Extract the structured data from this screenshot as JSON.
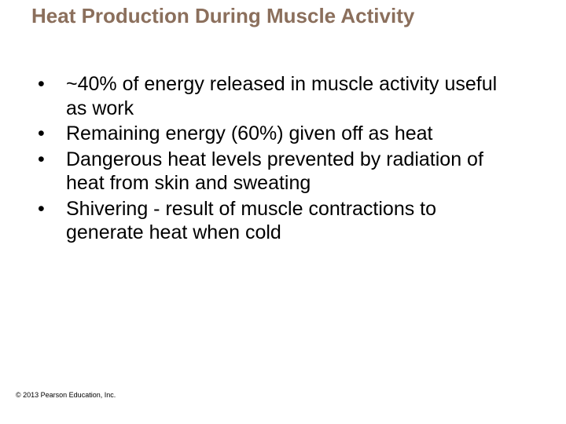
{
  "slide": {
    "title": "Heat Production During Muscle Activity",
    "title_color": "#8b6f5c",
    "title_fontsize": 26,
    "body_fontsize": 25,
    "body_color": "#000000",
    "background_color": "#ffffff",
    "bullets": [
      "~40% of energy released in muscle activity useful as work",
      "Remaining energy (60%) given off as heat",
      "Dangerous heat levels prevented by radiation of heat from skin and sweating",
      "Shivering - result of muscle contractions to generate heat when cold"
    ],
    "copyright": "© 2013 Pearson Education, Inc.",
    "copyright_fontsize": 9
  }
}
